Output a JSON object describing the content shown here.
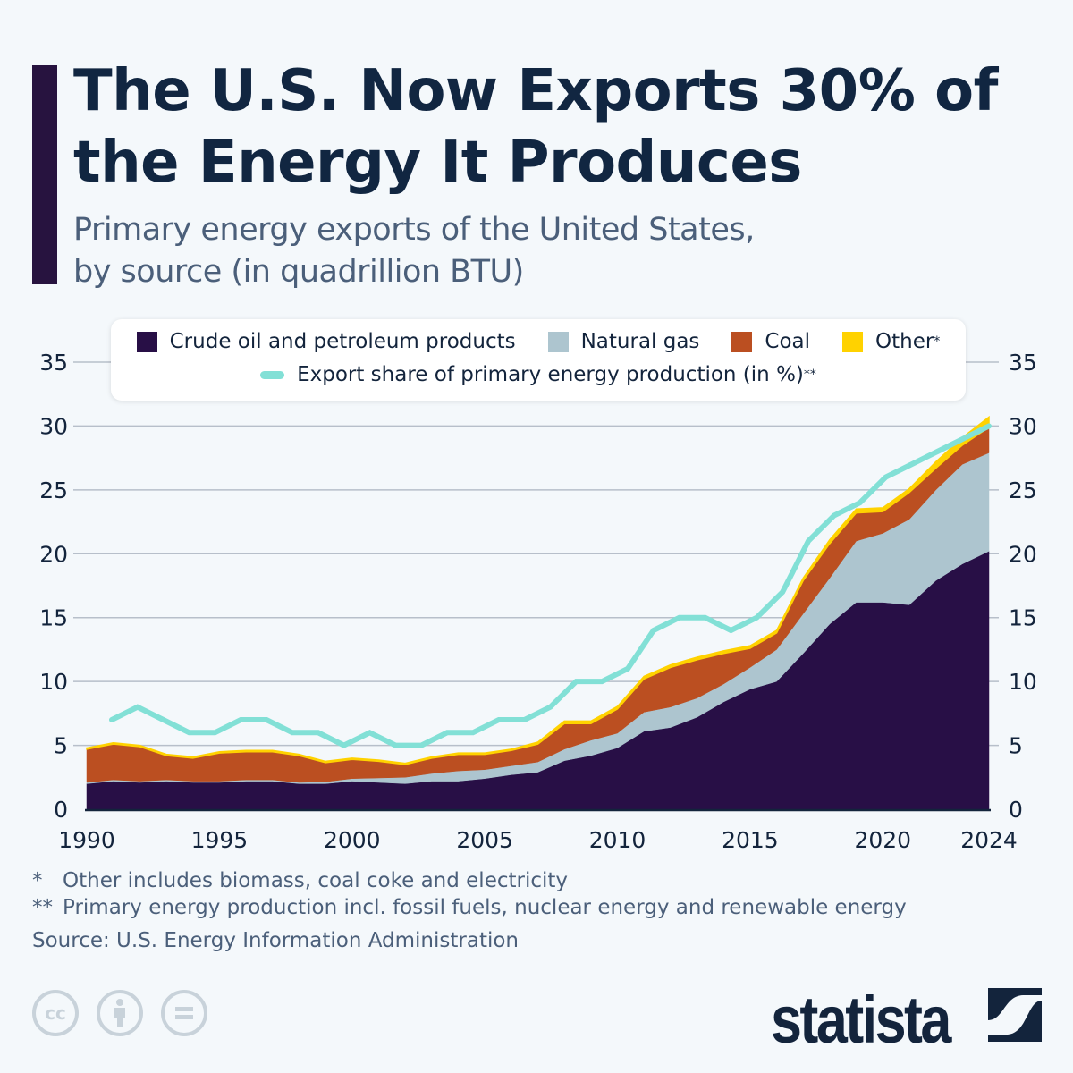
{
  "header": {
    "title": "The U.S. Now Exports 30% of the Energy It Produces",
    "subtitle_line1": "Primary energy exports of the United States,",
    "subtitle_line2": "by source (in quadrillion BTU)"
  },
  "legend": {
    "crude": "Crude oil and petroleum products",
    "gas": "Natural gas",
    "coal": "Coal",
    "other": "Other",
    "other_mark": "*",
    "share": "Export share of primary energy production (in %)",
    "share_mark": "**"
  },
  "colors": {
    "crude": "#280f46",
    "gas": "#adc5cf",
    "coal": "#bb4f21",
    "other": "#ffd200",
    "share": "#82e0d6",
    "accent": "#27133f",
    "title": "#112641"
  },
  "chart_data": {
    "type": "area",
    "stacked": true,
    "x": [
      1990,
      1991,
      1992,
      1993,
      1994,
      1995,
      1996,
      1997,
      1998,
      1999,
      2000,
      2001,
      2002,
      2003,
      2004,
      2005,
      2006,
      2007,
      2008,
      2009,
      2010,
      2011,
      2012,
      2013,
      2014,
      2015,
      2016,
      2017,
      2018,
      2019,
      2020,
      2021,
      2022,
      2023,
      2024
    ],
    "x_ticks": [
      "1990",
      "1995",
      "2000",
      "2005",
      "2010",
      "2015",
      "2020",
      "2024"
    ],
    "y_ticks": [
      "0",
      "5",
      "10",
      "15",
      "20",
      "25",
      "30",
      "35"
    ],
    "ylim": [
      0,
      35
    ],
    "grid": true,
    "legend_position": "top",
    "series": [
      {
        "name": "Crude oil and petroleum products",
        "values": [
          2.0,
          2.2,
          2.1,
          2.2,
          2.1,
          2.1,
          2.2,
          2.2,
          2.0,
          2.0,
          2.2,
          2.1,
          2.0,
          2.2,
          2.2,
          2.4,
          2.7,
          2.9,
          3.8,
          4.2,
          4.8,
          6.1,
          6.4,
          7.2,
          8.4,
          9.4,
          10.0,
          12.2,
          14.5,
          16.2,
          16.2,
          16.0,
          17.9,
          19.2,
          20.2
        ]
      },
      {
        "name": "Natural gas",
        "values": [
          0.1,
          0.1,
          0.1,
          0.1,
          0.1,
          0.1,
          0.1,
          0.1,
          0.1,
          0.15,
          0.2,
          0.35,
          0.5,
          0.6,
          0.8,
          0.7,
          0.7,
          0.8,
          0.9,
          1.2,
          1.15,
          1.5,
          1.6,
          1.5,
          1.4,
          1.7,
          2.5,
          3.1,
          3.6,
          4.8,
          5.4,
          6.7,
          7.1,
          7.8,
          7.7
        ]
      },
      {
        "name": "Coal",
        "values": [
          2.6,
          2.8,
          2.7,
          1.9,
          1.8,
          2.2,
          2.2,
          2.2,
          2.1,
          1.5,
          1.5,
          1.3,
          1.0,
          1.2,
          1.3,
          1.2,
          1.2,
          1.4,
          2.0,
          1.3,
          1.9,
          2.6,
          3.1,
          3.0,
          2.4,
          1.5,
          1.3,
          2.6,
          2.7,
          2.2,
          1.7,
          2.1,
          1.7,
          1.5,
          2.0
        ]
      },
      {
        "name": "Other",
        "values": [
          0.1,
          0.1,
          0.1,
          0.1,
          0.1,
          0.1,
          0.1,
          0.1,
          0.1,
          0.1,
          0.1,
          0.1,
          0.1,
          0.1,
          0.1,
          0.1,
          0.1,
          0.15,
          0.2,
          0.2,
          0.2,
          0.2,
          0.2,
          0.2,
          0.2,
          0.2,
          0.2,
          0.2,
          0.3,
          0.3,
          0.3,
          0.3,
          0.5,
          0.6,
          0.8
        ]
      }
    ],
    "line_series": {
      "name": "Export share of primary energy production (in %)",
      "unit": "%",
      "values": [
        7,
        8,
        7,
        6,
        6,
        7,
        7,
        6,
        6,
        5,
        6,
        5,
        5,
        6,
        6,
        7,
        7,
        8,
        10,
        10,
        11,
        14,
        15,
        15,
        14,
        15,
        17,
        21,
        23,
        24,
        26,
        27,
        28,
        29,
        30
      ]
    }
  },
  "footnotes": {
    "note1_mark": "*",
    "note1": "Other includes biomass, coal coke and electricity",
    "note2_mark": "**",
    "note2": "Primary energy production incl. fossil fuels, nuclear energy and renewable energy",
    "source": "Source: U.S. Energy Information Administration"
  },
  "branding": {
    "logo": "statista",
    "license_icons": [
      "cc-icon",
      "attribution-icon",
      "no-derivatives-icon"
    ]
  }
}
